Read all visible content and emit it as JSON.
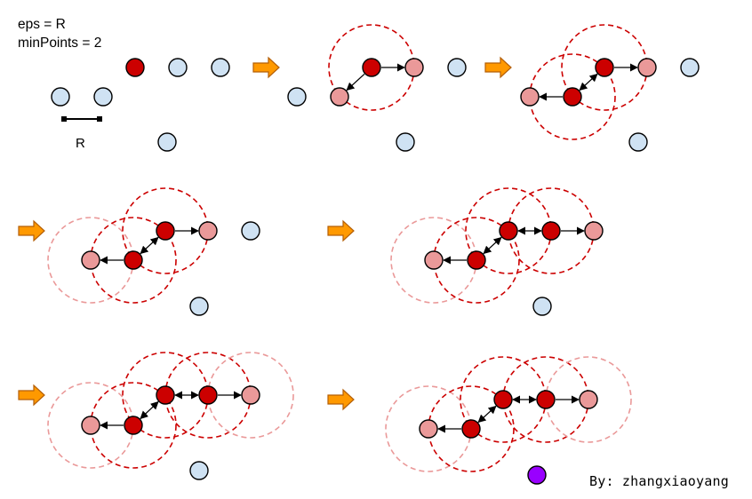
{
  "params": {
    "eps": "eps = R",
    "min_points": "minPoints = 2"
  },
  "scale_label": "R",
  "credit": "By: zhangxiaoyang",
  "colors": {
    "unvisited": "#cfe2f3",
    "core": "#cc0000",
    "border": "#ea9999",
    "noise": "#9900ff",
    "circle_active": "#cc0000",
    "circle_faded": "#ea9999",
    "arrow_fill": "#ff9900",
    "arrow_stroke": "#b45f06"
  },
  "icons": {
    "step_arrow": "orange-step-arrow-icon",
    "scale_bar": "radius-scale-bar-icon"
  }
}
